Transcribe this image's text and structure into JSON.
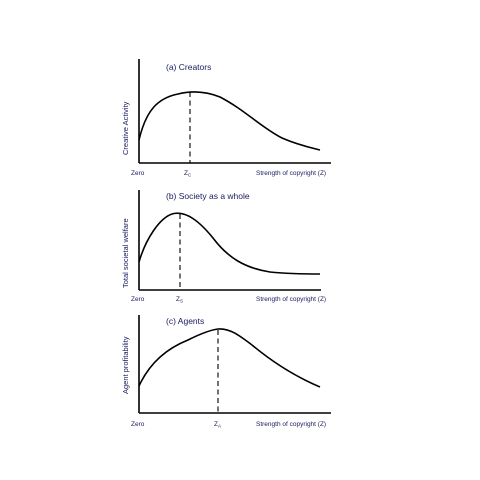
{
  "panels": [
    {
      "title": "(a) Creators",
      "ylabel": "Creative Activity",
      "origin_label": "Zero",
      "xlabel": "Strength of copyright  (Z)",
      "peak_label": "Z",
      "peak_sub": "C"
    },
    {
      "title": "(b) Society as a whole",
      "ylabel": "Total societal welfare",
      "origin_label": "Zero",
      "xlabel": "Strength of copyright  (Z)",
      "peak_label": "Z",
      "peak_sub": "S"
    },
    {
      "title": "(c) Agents",
      "ylabel": "Agent profitability",
      "origin_label": "Zero",
      "xlabel": "Strength of copyright  (Z)",
      "peak_label": "Z",
      "peak_sub": "A"
    }
  ]
}
